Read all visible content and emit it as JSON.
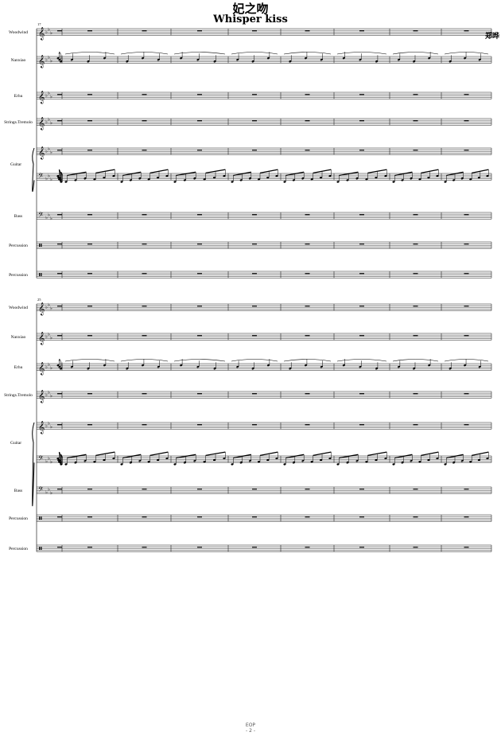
{
  "title_cn": "妃之吻",
  "title_en": "Whisper kiss",
  "composer": "郑晔",
  "footer": {
    "logo": "EOP",
    "page": "- 2 -"
  },
  "systems": [
    {
      "measure_start": "17",
      "instruments": [
        "Woodwind",
        "Nanxiao",
        "Erhu",
        "Strings.Tremolo",
        "Guitar",
        "Bass",
        "Percussion",
        "Percussion"
      ]
    },
    {
      "measure_start": "25",
      "instruments": [
        "Woodwind",
        "Nanxiao",
        "Erhu",
        "Strings.Tremolo",
        "Guitar",
        "Bass",
        "Percussion",
        "Percussion"
      ]
    }
  ]
}
